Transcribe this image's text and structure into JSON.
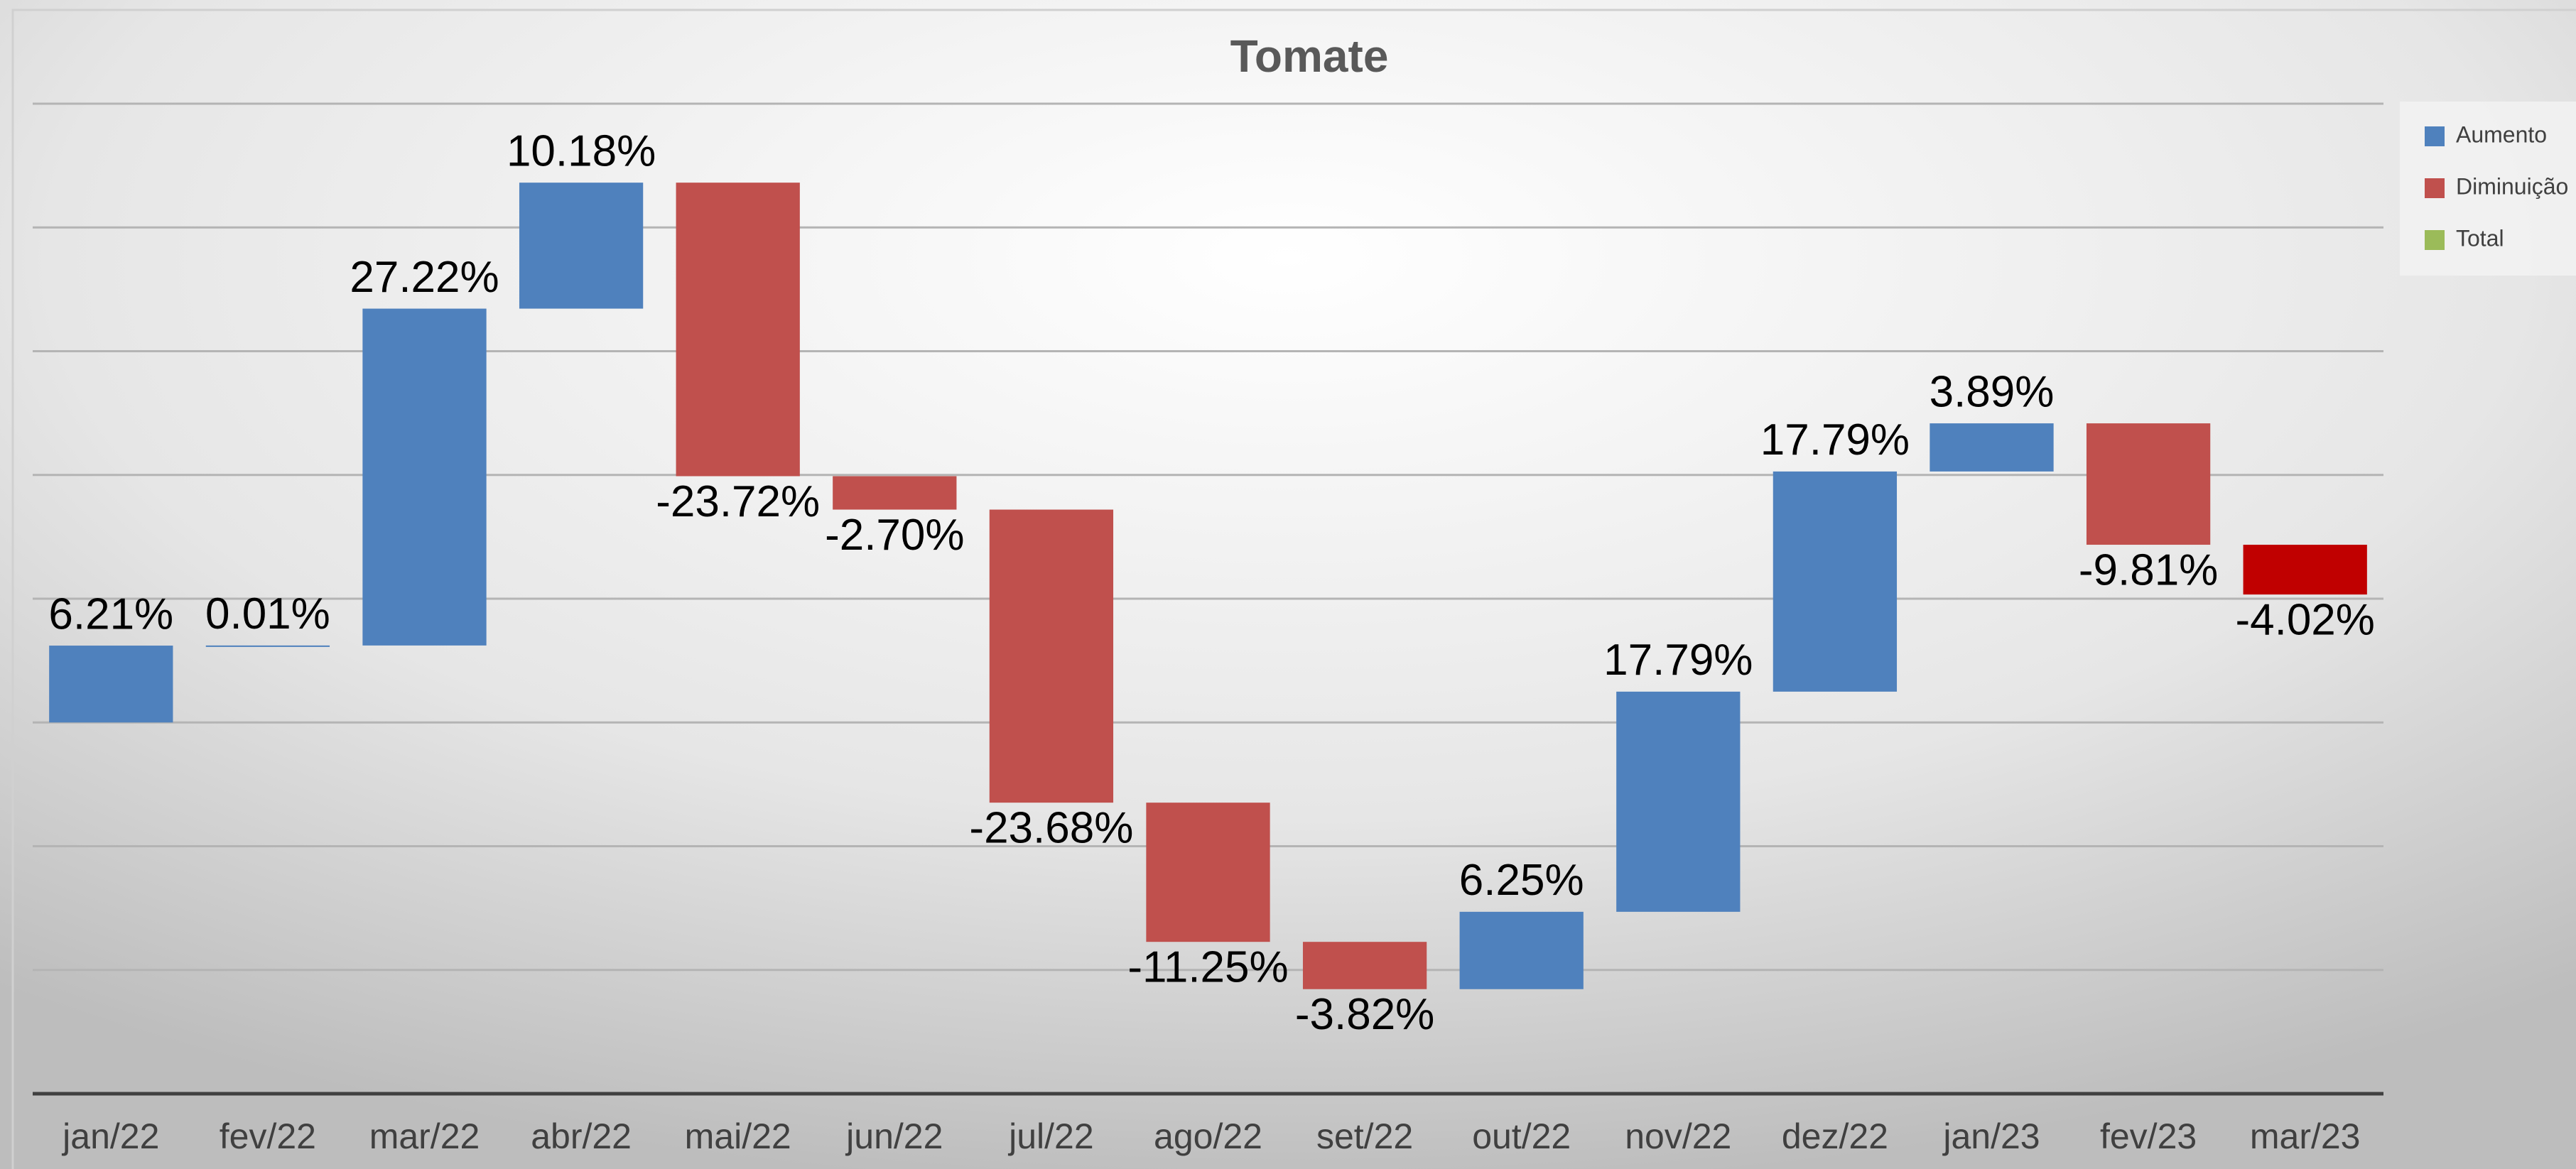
{
  "chart_data": {
    "type": "waterfall",
    "title": "Tomate",
    "categories": [
      "jan/22",
      "fev/22",
      "mar/22",
      "abr/22",
      "mai/22",
      "jun/22",
      "jul/22",
      "ago/22",
      "set/22",
      "out/22",
      "nov/22",
      "dez/22",
      "jan/23",
      "fev/23",
      "mar/23"
    ],
    "values": [
      6.21,
      0.01,
      27.22,
      10.18,
      -23.72,
      -2.7,
      -23.68,
      -11.25,
      -3.82,
      6.25,
      17.79,
      17.79,
      3.89,
      -9.81,
      -4.02
    ],
    "value_labels": [
      "6.21%",
      "0.01%",
      "27.22%",
      "10.18%",
      "-23.72%",
      "-2.70%",
      "-23.68%",
      "-11.25%",
      "-3.82%",
      "6.25%",
      "17.79%",
      "17.79%",
      "3.89%",
      "-9.81%",
      "-4.02%"
    ],
    "colors": [
      "#4f81bd",
      "#4f81bd",
      "#4f81bd",
      "#4f81bd",
      "#c0504d",
      "#c0504d",
      "#c0504d",
      "#c0504d",
      "#c0504d",
      "#4f81bd",
      "#4f81bd",
      "#4f81bd",
      "#4f81bd",
      "#c0504d",
      "#c00000"
    ],
    "legend": [
      {
        "name": "Aumento",
        "color": "#4f81bd"
      },
      {
        "name": "Diminuição",
        "color": "#c0504d"
      },
      {
        "name": "Total",
        "color": "#9bbb59"
      }
    ],
    "legend_position": "right",
    "ylim": [
      -30,
      50
    ],
    "yticks": [
      -30,
      -20,
      -10,
      0,
      10,
      20,
      30,
      40,
      50
    ],
    "grid": true
  }
}
